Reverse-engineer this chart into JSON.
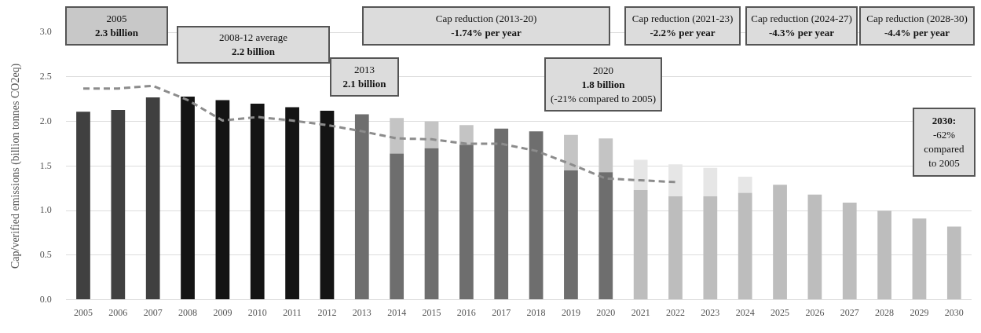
{
  "chart_data": {
    "type": "bar",
    "stacked": true,
    "ylabel": "Cap/verified emissions (billion tonnes CO2eq)",
    "categories": [
      "2005",
      "2006",
      "2007",
      "2008",
      "2009",
      "2010",
      "2011",
      "2012",
      "2013",
      "2014",
      "2015",
      "2016",
      "2017",
      "2018",
      "2019",
      "2020",
      "2021",
      "2022",
      "2023",
      "2024",
      "2025",
      "2026",
      "2027",
      "2028",
      "2029",
      "2030"
    ],
    "series": [
      {
        "values": [
          2.11,
          2.13,
          2.27,
          2.28,
          2.24,
          2.2,
          2.16,
          2.12,
          2.08,
          1.64,
          1.7,
          1.74,
          1.92,
          1.89,
          1.45,
          1.43,
          1.23,
          1.16,
          1.16,
          1.2,
          1.29,
          1.18,
          1.09,
          1.0,
          0.91,
          0.82
        ],
        "colors": [
          "#404040",
          "#404040",
          "#404040",
          "#141414",
          "#141414",
          "#141414",
          "#141414",
          "#141414",
          "#6e6e6e",
          "#6e6e6e",
          "#6e6e6e",
          "#6e6e6e",
          "#6e6e6e",
          "#6e6e6e",
          "#6e6e6e",
          "#6e6e6e",
          "#bdbdbd",
          "#bdbdbd",
          "#bdbdbd",
          "#bdbdbd",
          "#bdbdbd",
          "#bdbdbd",
          "#bdbdbd",
          "#bdbdbd",
          "#bdbdbd",
          "#bdbdbd"
        ]
      },
      {
        "values": [
          null,
          null,
          null,
          null,
          null,
          null,
          null,
          null,
          null,
          0.4,
          0.3,
          0.22,
          null,
          null,
          0.4,
          0.38,
          0.34,
          0.36,
          0.32,
          0.18,
          null,
          null,
          null,
          null,
          null,
          null
        ],
        "colors": [
          "#c4c4c4",
          "#c4c4c4",
          "#c4c4c4",
          "#c4c4c4",
          "#c4c4c4",
          "#c4c4c4",
          "#c4c4c4",
          "#c4c4c4",
          "#c4c4c4",
          "#c4c4c4",
          "#c4c4c4",
          "#c4c4c4",
          "#c4c4c4",
          "#c4c4c4",
          "#c4c4c4",
          "#c4c4c4",
          "#e6e6e6",
          "#e6e6e6",
          "#e6e6e6",
          "#e6e6e6",
          "#e6e6e6",
          "#e6e6e6",
          "#e6e6e6",
          "#e6e6e6",
          "#e6e6e6",
          "#e6e6e6"
        ]
      },
      {
        "type": "line",
        "color": "#8c8c8c",
        "line_style": "dashed",
        "marker": "none",
        "values": [
          2.37,
          2.37,
          2.4,
          2.24,
          2.01,
          2.05,
          2.01,
          1.96,
          1.89,
          1.81,
          1.8,
          1.75,
          1.75,
          1.67,
          1.52,
          1.36,
          1.34,
          1.32,
          null,
          null,
          null,
          null,
          null,
          null,
          null,
          null
        ]
      }
    ],
    "ylim": [
      0,
      3.0
    ],
    "yticks": [
      {
        "value": 0,
        "label": "0.0"
      },
      0.5,
      {
        "value": 1,
        "label": "1.0"
      },
      1.5,
      {
        "value": 2,
        "label": "2.0"
      },
      2.5,
      {
        "value": 3,
        "label": "3.0"
      }
    ],
    "grid": "y",
    "legend": false,
    "annotations": [
      "2005\n2.3 billion",
      "2008-12 average\n2.2 billion",
      "2013\n2.1 billion",
      "Cap reduction (2013-20)\n-1.74% per year",
      "2020\n1.8 billion\n(-21% compared to 2005)",
      "Cap reduction (2021-23)\n-2.2% per year",
      "Cap reduction (2024-27)\n-4.3% per year",
      "Cap reduction (2028-30)\n-4.4% per year",
      "2030:\n-62%\ncompared\nto 2005"
    ]
  }
}
